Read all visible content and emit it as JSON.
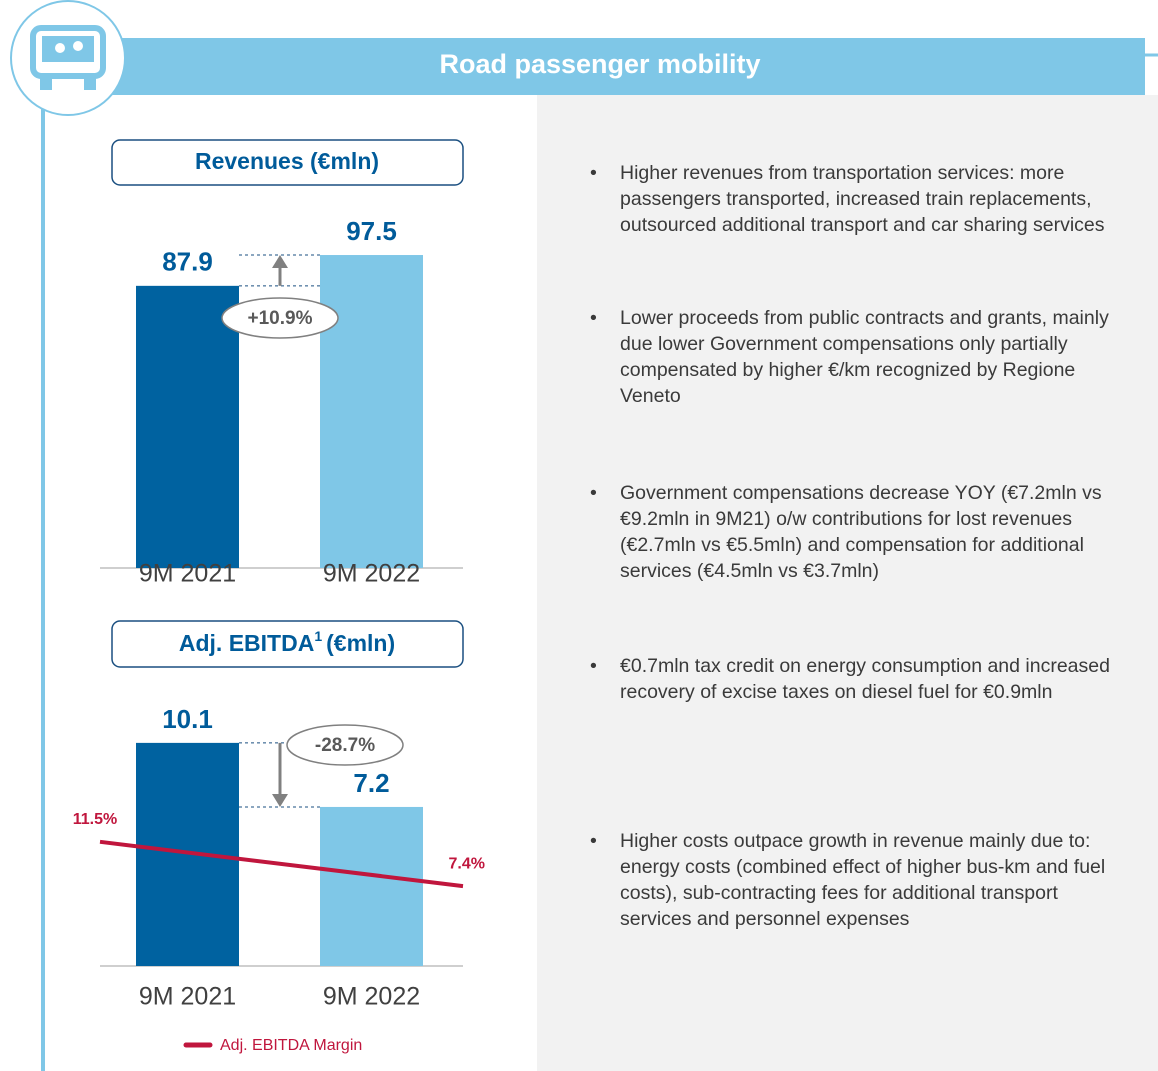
{
  "header": {
    "title": "Road passenger mobility"
  },
  "chart_data": [
    {
      "type": "bar",
      "title": "Revenues (€mln)",
      "categories": [
        "9M 2021",
        "9M 2022"
      ],
      "values": [
        87.9,
        97.5
      ],
      "colors": [
        "#0062a0",
        "#7fc7e7"
      ],
      "ylim": [
        0,
        100
      ],
      "annotation": "+10.9%"
    },
    {
      "type": "bar",
      "title": "Adj. EBITDA",
      "title_superscript": "1",
      "title_unit": "(€mln)",
      "categories": [
        "9M 2021",
        "9M 2022"
      ],
      "values": [
        10.1,
        7.2
      ],
      "colors": [
        "#0062a0",
        "#7fc7e7"
      ],
      "ylim": [
        0,
        11
      ],
      "annotation": "-28.7%",
      "line_series": {
        "name": "Adj. EBITDA Margin",
        "color": "#c0163d",
        "values": [
          11.5,
          7.4
        ],
        "value_labels": [
          "11.5%",
          "7.4%"
        ],
        "axis": "y2"
      },
      "y2lim": [
        0,
        22.5
      ]
    }
  ],
  "bullets": [
    "Higher revenues from transportation services: more passengers transported, increased train replacements, outsourced additional transport and car sharing services",
    "Lower proceeds from public contracts and grants, mainly due lower Government compensations only partially compensated by higher €/km recognized by Regione Veneto",
    "Government compensations decrease YOY (€7.2mln vs €9.2mln in 9M21) o/w contributions for lost revenues (€2.7mln vs €5.5mln) and compensation for additional services (€4.5mln vs €3.7mln)",
    "€0.7mln tax credit on energy consumption and increased recovery of excise taxes on diesel fuel for €0.9mln",
    "Higher costs outpace growth in revenue mainly due to: energy costs (combined effect of higher bus-km and fuel costs), sub-contracting fees for additional transport services and personnel expenses"
  ]
}
